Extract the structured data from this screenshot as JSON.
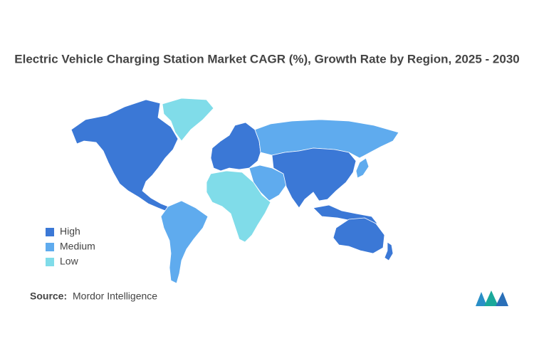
{
  "title": "Electric Vehicle Charging Station Market CAGR (%), Growth Rate by Region, 2025 - 2030",
  "legend": [
    {
      "label": "High",
      "color": "#3b78d6"
    },
    {
      "label": "Medium",
      "color": "#5fabee"
    },
    {
      "label": "Low",
      "color": "#80dce9"
    }
  ],
  "source": {
    "label": "Source:",
    "text": "Mordor Intelligence"
  }
}
